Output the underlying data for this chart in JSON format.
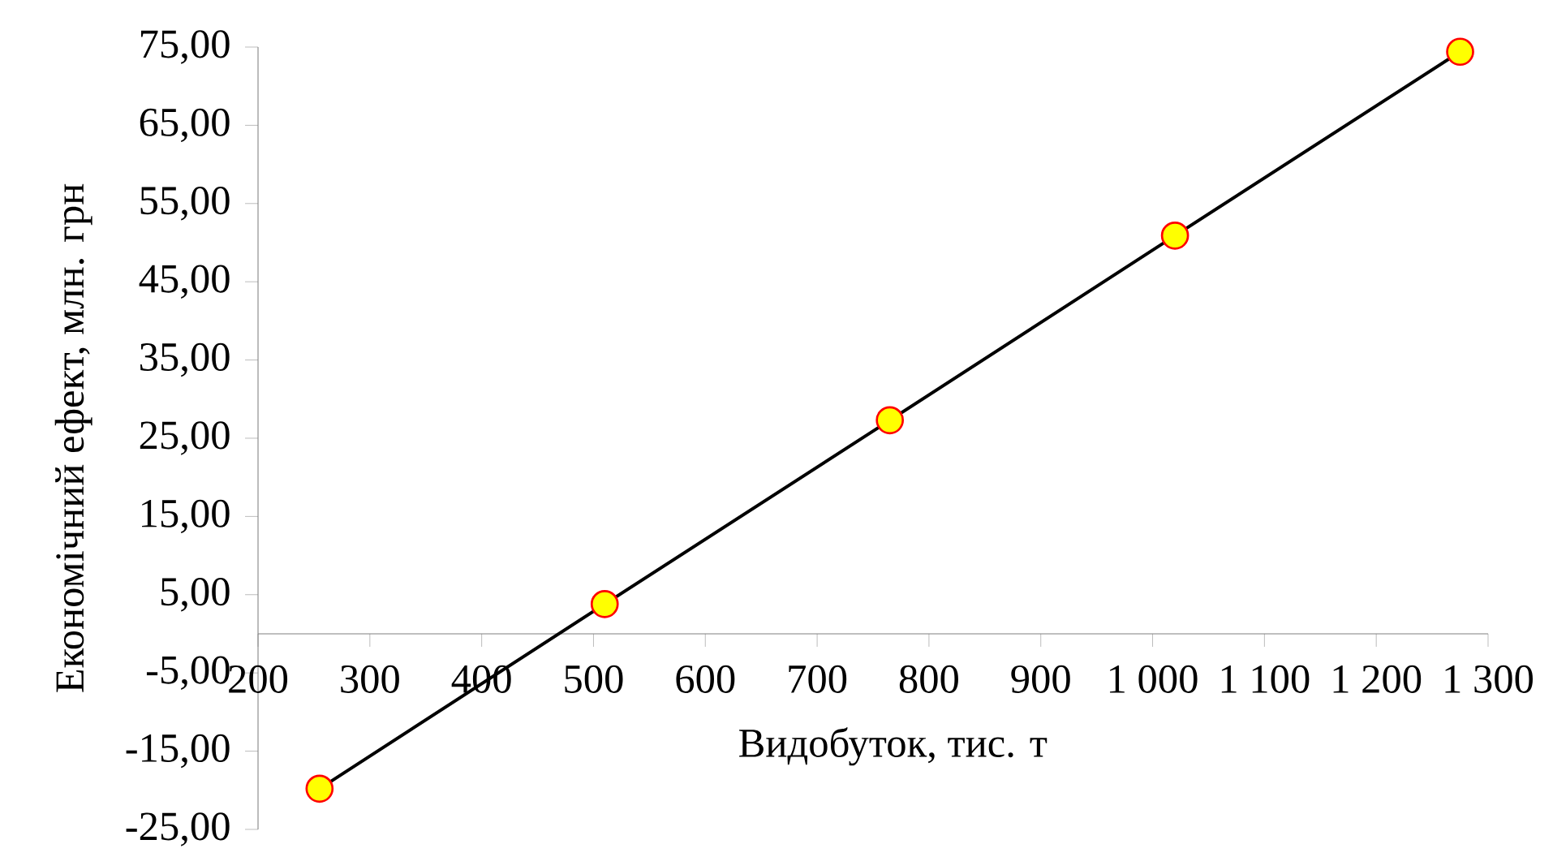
{
  "chart_data": {
    "type": "line",
    "xlabel": "Видобуток, тис. т",
    "ylabel": "Економічний ефект, млн. грн",
    "x": [
      255,
      510,
      765,
      1020,
      1275
    ],
    "series": [
      {
        "color": "#000000",
        "colors": [
          "#ffff00",
          "#ffff00",
          "#ffff00",
          "#ffff00",
          "#ffff00"
        ],
        "values": [
          -19.8,
          3.8,
          27.3,
          50.9,
          74.4
        ]
      }
    ],
    "xlim": [
      200,
      1300
    ],
    "xticks": [
      200,
      300,
      400,
      500,
      600,
      700,
      800,
      900,
      {
        "value": 1000,
        "label": "1 000"
      },
      {
        "value": 1100,
        "label": "1 100"
      },
      {
        "value": 1200,
        "label": "1 200"
      },
      {
        "value": 1300,
        "label": "1 300"
      }
    ],
    "ylim": [
      -25,
      75
    ],
    "yticks": [
      {
        "value": -25,
        "label": "-25,00"
      },
      {
        "value": -15,
        "label": "-15,00"
      },
      {
        "value": -5,
        "label": "-5,00"
      },
      {
        "value": 5,
        "label": "5,00"
      },
      {
        "value": 15,
        "label": "15,00"
      },
      {
        "value": 25,
        "label": "25,00"
      },
      {
        "value": 35,
        "label": "35,00"
      },
      {
        "value": 45,
        "label": "45,00"
      },
      {
        "value": 55,
        "label": "55,00"
      },
      {
        "value": 65,
        "label": "65,00"
      },
      {
        "value": 75,
        "label": "75,00"
      }
    ],
    "marker": "circle",
    "grid": false
  }
}
